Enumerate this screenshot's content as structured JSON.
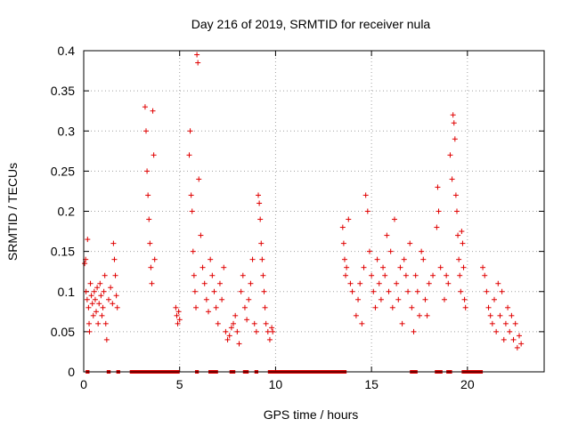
{
  "chart_data": {
    "type": "scatter",
    "title": "Day 216 of 2019, SRMTID for receiver nula",
    "xlabel": "GPS time / hours",
    "ylabel": "SRMTID / TECUs",
    "xlim": [
      0,
      24
    ],
    "ylim": [
      0,
      0.4
    ],
    "grid": true,
    "marker": "+",
    "color": "#e00000",
    "xticks": [
      0,
      5,
      10,
      15,
      20
    ],
    "xtick_labels": [
      "0",
      "5",
      "10",
      "15",
      "20"
    ],
    "yticks": [
      0,
      0.05,
      0.1,
      0.15,
      0.2,
      0.25,
      0.3,
      0.35,
      0.4
    ],
    "ytick_labels": [
      "0",
      "0.05",
      "0.1",
      "0.15",
      "0.2",
      "0.25",
      "0.3",
      "0.35",
      "0.4"
    ],
    "points": [
      [
        0.05,
        0.135
      ],
      [
        0.1,
        0.14
      ],
      [
        0.12,
        0.1
      ],
      [
        0.18,
        0.09
      ],
      [
        0.2,
        0.165
      ],
      [
        0.25,
        0.08
      ],
      [
        0.28,
        0.06
      ],
      [
        0.3,
        0.05
      ],
      [
        0.35,
        0.11
      ],
      [
        0.4,
        0.095
      ],
      [
        0.45,
        0.085
      ],
      [
        0.5,
        0.07
      ],
      [
        0.55,
        0.1
      ],
      [
        0.6,
        0.09
      ],
      [
        0.65,
        0.075
      ],
      [
        0.7,
        0.105
      ],
      [
        0.75,
        0.06
      ],
      [
        0.8,
        0.085
      ],
      [
        0.85,
        0.11
      ],
      [
        0.9,
        0.095
      ],
      [
        0.95,
        0.07
      ],
      [
        1.0,
        0.08
      ],
      [
        1.05,
        0.1
      ],
      [
        1.1,
        0.12
      ],
      [
        1.15,
        0.06
      ],
      [
        1.2,
        0.04
      ],
      [
        1.3,
        0.09
      ],
      [
        1.4,
        0.105
      ],
      [
        1.5,
        0.085
      ],
      [
        1.55,
        0.16
      ],
      [
        1.6,
        0.14
      ],
      [
        1.65,
        0.12
      ],
      [
        1.7,
        0.095
      ],
      [
        1.75,
        0.08
      ],
      [
        3.2,
        0.33
      ],
      [
        3.25,
        0.3
      ],
      [
        3.3,
        0.25
      ],
      [
        3.35,
        0.22
      ],
      [
        3.4,
        0.19
      ],
      [
        3.45,
        0.16
      ],
      [
        3.5,
        0.13
      ],
      [
        3.55,
        0.11
      ],
      [
        3.6,
        0.325
      ],
      [
        3.65,
        0.27
      ],
      [
        3.7,
        0.14
      ],
      [
        4.8,
        0.08
      ],
      [
        4.85,
        0.07
      ],
      [
        4.9,
        0.06
      ],
      [
        4.95,
        0.075
      ],
      [
        5.0,
        0.065
      ],
      [
        5.5,
        0.27
      ],
      [
        5.55,
        0.3
      ],
      [
        5.6,
        0.22
      ],
      [
        5.65,
        0.2
      ],
      [
        5.7,
        0.15
      ],
      [
        5.75,
        0.12
      ],
      [
        5.8,
        0.1
      ],
      [
        5.85,
        0.08
      ],
      [
        5.9,
        0.395
      ],
      [
        5.95,
        0.385
      ],
      [
        6.0,
        0.24
      ],
      [
        6.1,
        0.17
      ],
      [
        6.2,
        0.13
      ],
      [
        6.3,
        0.11
      ],
      [
        6.4,
        0.09
      ],
      [
        6.5,
        0.075
      ],
      [
        6.6,
        0.14
      ],
      [
        6.7,
        0.12
      ],
      [
        6.8,
        0.1
      ],
      [
        6.9,
        0.08
      ],
      [
        7.0,
        0.06
      ],
      [
        7.1,
        0.11
      ],
      [
        7.2,
        0.09
      ],
      [
        7.3,
        0.13
      ],
      [
        7.4,
        0.05
      ],
      [
        7.5,
        0.04
      ],
      [
        7.6,
        0.045
      ],
      [
        7.7,
        0.055
      ],
      [
        7.8,
        0.06
      ],
      [
        7.9,
        0.07
      ],
      [
        8.0,
        0.05
      ],
      [
        8.1,
        0.035
      ],
      [
        8.2,
        0.1
      ],
      [
        8.3,
        0.12
      ],
      [
        8.4,
        0.08
      ],
      [
        8.5,
        0.065
      ],
      [
        8.6,
        0.09
      ],
      [
        8.7,
        0.11
      ],
      [
        8.8,
        0.14
      ],
      [
        8.9,
        0.06
      ],
      [
        9.0,
        0.05
      ],
      [
        9.1,
        0.22
      ],
      [
        9.15,
        0.21
      ],
      [
        9.2,
        0.19
      ],
      [
        9.25,
        0.16
      ],
      [
        9.3,
        0.14
      ],
      [
        9.35,
        0.12
      ],
      [
        9.4,
        0.1
      ],
      [
        9.45,
        0.08
      ],
      [
        9.5,
        0.06
      ],
      [
        9.6,
        0.05
      ],
      [
        9.7,
        0.04
      ],
      [
        9.8,
        0.055
      ],
      [
        9.85,
        0.05
      ],
      [
        13.5,
        0.18
      ],
      [
        13.55,
        0.16
      ],
      [
        13.6,
        0.14
      ],
      [
        13.65,
        0.12
      ],
      [
        13.7,
        0.13
      ],
      [
        13.8,
        0.19
      ],
      [
        13.9,
        0.11
      ],
      [
        14.0,
        0.1
      ],
      [
        14.2,
        0.07
      ],
      [
        14.3,
        0.09
      ],
      [
        14.4,
        0.11
      ],
      [
        14.5,
        0.06
      ],
      [
        14.6,
        0.13
      ],
      [
        14.7,
        0.22
      ],
      [
        14.8,
        0.2
      ],
      [
        14.9,
        0.15
      ],
      [
        15.0,
        0.12
      ],
      [
        15.1,
        0.1
      ],
      [
        15.2,
        0.08
      ],
      [
        15.3,
        0.14
      ],
      [
        15.4,
        0.11
      ],
      [
        15.5,
        0.09
      ],
      [
        15.6,
        0.13
      ],
      [
        15.7,
        0.12
      ],
      [
        15.8,
        0.17
      ],
      [
        15.9,
        0.1
      ],
      [
        16.0,
        0.15
      ],
      [
        16.1,
        0.08
      ],
      [
        16.2,
        0.19
      ],
      [
        16.3,
        0.11
      ],
      [
        16.4,
        0.09
      ],
      [
        16.5,
        0.13
      ],
      [
        16.6,
        0.06
      ],
      [
        16.7,
        0.14
      ],
      [
        16.8,
        0.12
      ],
      [
        16.9,
        0.1
      ],
      [
        17.0,
        0.16
      ],
      [
        17.1,
        0.08
      ],
      [
        17.2,
        0.05
      ],
      [
        17.3,
        0.12
      ],
      [
        17.4,
        0.1
      ],
      [
        17.5,
        0.07
      ],
      [
        17.6,
        0.15
      ],
      [
        17.7,
        0.14
      ],
      [
        17.8,
        0.09
      ],
      [
        17.9,
        0.07
      ],
      [
        18.0,
        0.11
      ],
      [
        18.2,
        0.12
      ],
      [
        18.4,
        0.18
      ],
      [
        18.45,
        0.23
      ],
      [
        18.5,
        0.2
      ],
      [
        18.6,
        0.13
      ],
      [
        18.8,
        0.09
      ],
      [
        18.9,
        0.12
      ],
      [
        19.0,
        0.11
      ],
      [
        19.1,
        0.27
      ],
      [
        19.2,
        0.24
      ],
      [
        19.25,
        0.32
      ],
      [
        19.3,
        0.31
      ],
      [
        19.35,
        0.29
      ],
      [
        19.4,
        0.22
      ],
      [
        19.45,
        0.2
      ],
      [
        19.5,
        0.17
      ],
      [
        19.55,
        0.14
      ],
      [
        19.6,
        0.12
      ],
      [
        19.65,
        0.1
      ],
      [
        19.7,
        0.175
      ],
      [
        19.75,
        0.16
      ],
      [
        19.8,
        0.13
      ],
      [
        19.85,
        0.09
      ],
      [
        19.9,
        0.08
      ],
      [
        20.8,
        0.13
      ],
      [
        20.9,
        0.12
      ],
      [
        21.0,
        0.1
      ],
      [
        21.1,
        0.08
      ],
      [
        21.2,
        0.07
      ],
      [
        21.3,
        0.06
      ],
      [
        21.4,
        0.09
      ],
      [
        21.5,
        0.05
      ],
      [
        21.6,
        0.11
      ],
      [
        21.7,
        0.07
      ],
      [
        21.8,
        0.1
      ],
      [
        21.9,
        0.04
      ],
      [
        22.0,
        0.06
      ],
      [
        22.1,
        0.08
      ],
      [
        22.2,
        0.05
      ],
      [
        22.3,
        0.07
      ],
      [
        22.4,
        0.04
      ],
      [
        22.5,
        0.06
      ],
      [
        22.6,
        0.03
      ],
      [
        22.7,
        0.045
      ],
      [
        22.8,
        0.035
      ]
    ],
    "zero_segments": [
      [
        0.1,
        0.3
      ],
      [
        1.2,
        1.4
      ],
      [
        1.7,
        1.9
      ],
      [
        2.4,
        5.0
      ],
      [
        5.8,
        6.0
      ],
      [
        6.5,
        7.0
      ],
      [
        7.6,
        7.9
      ],
      [
        8.3,
        8.6
      ],
      [
        8.9,
        9.1
      ],
      [
        9.6,
        13.7
      ],
      [
        17.0,
        17.4
      ],
      [
        18.3,
        18.7
      ],
      [
        18.9,
        19.2
      ],
      [
        19.7,
        20.8
      ]
    ]
  }
}
